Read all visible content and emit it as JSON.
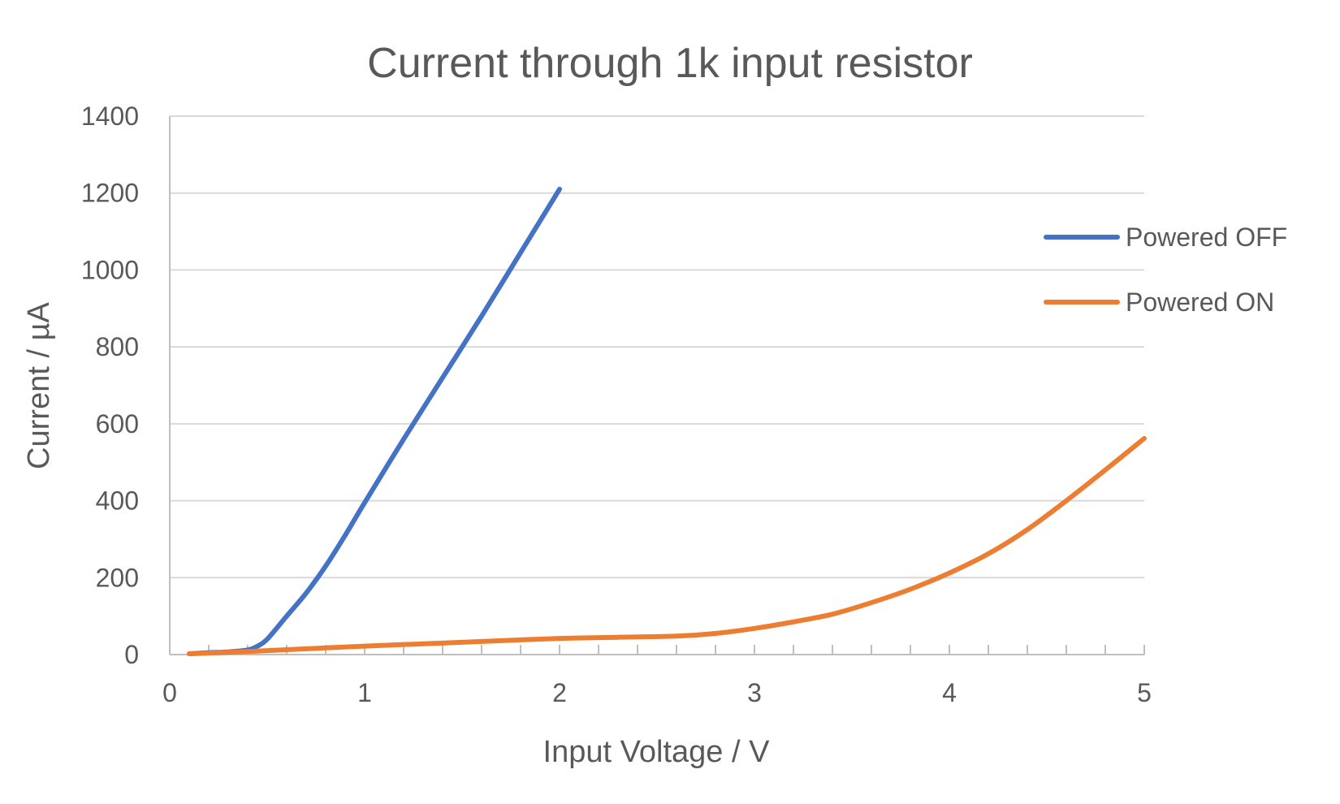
{
  "chart_data": {
    "type": "line",
    "title": "Current through 1k input resistor",
    "xlabel": "Input Voltage / V",
    "ylabel": "Current / µA",
    "xlim": [
      0,
      5
    ],
    "ylim": [
      0,
      1400
    ],
    "xticks": [
      0,
      1,
      2,
      3,
      4,
      5
    ],
    "yticks": [
      0,
      200,
      400,
      600,
      800,
      1000,
      1200,
      1400
    ],
    "x_minor_step": 0.2,
    "grid": "horizontal",
    "legend_position": "right",
    "series": [
      {
        "name": "Powered OFF",
        "color": "#4472C4",
        "points": [
          [
            0.1,
            2
          ],
          [
            0.2,
            5
          ],
          [
            0.3,
            7
          ],
          [
            0.4,
            12
          ],
          [
            0.45,
            22
          ],
          [
            0.5,
            40
          ],
          [
            0.6,
            100
          ],
          [
            0.7,
            160
          ],
          [
            0.8,
            230
          ],
          [
            0.9,
            310
          ],
          [
            1.0,
            395
          ],
          [
            1.2,
            560
          ],
          [
            1.4,
            720
          ],
          [
            1.6,
            880
          ],
          [
            1.8,
            1045
          ],
          [
            2.0,
            1210
          ]
        ]
      },
      {
        "name": "Powered ON",
        "color": "#ED7D31",
        "points": [
          [
            0.1,
            2
          ],
          [
            0.4,
            8
          ],
          [
            0.7,
            15
          ],
          [
            1.0,
            22
          ],
          [
            1.3,
            28
          ],
          [
            1.6,
            34
          ],
          [
            2.0,
            42
          ],
          [
            2.3,
            45
          ],
          [
            2.6,
            48
          ],
          [
            2.8,
            55
          ],
          [
            3.0,
            68
          ],
          [
            3.2,
            85
          ],
          [
            3.4,
            105
          ],
          [
            3.6,
            135
          ],
          [
            3.8,
            170
          ],
          [
            4.0,
            212
          ],
          [
            4.2,
            262
          ],
          [
            4.4,
            325
          ],
          [
            4.6,
            400
          ],
          [
            4.8,
            480
          ],
          [
            5.0,
            562
          ]
        ]
      }
    ]
  }
}
